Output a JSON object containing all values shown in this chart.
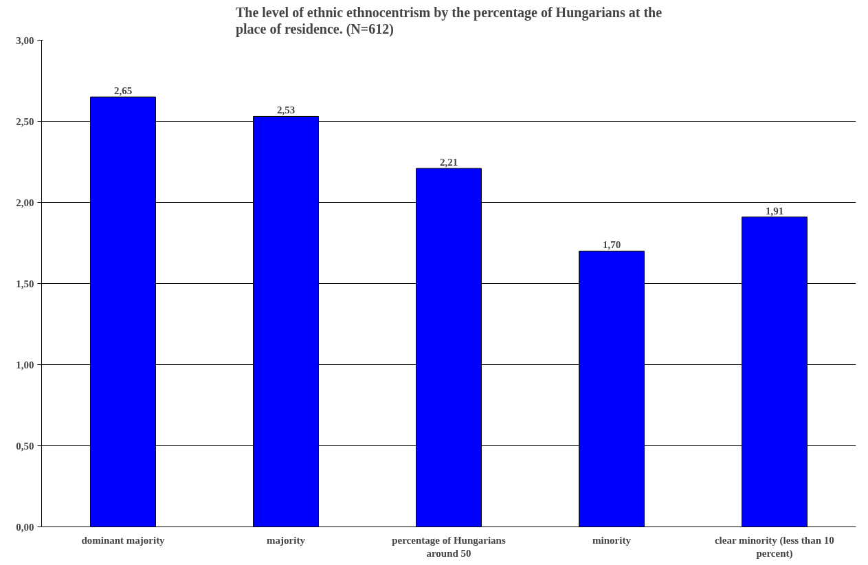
{
  "chart_data": {
    "type": "bar",
    "title": "The level of ethnic ethnocentrism by the percentage of Hungarians at the place of residence. (N=612)",
    "categories": [
      "dominant majority",
      "majority",
      "percentage of Hungarians around 50",
      "minority",
      "clear minority (less than 10 percent)"
    ],
    "values": [
      2.65,
      2.53,
      2.21,
      1.7,
      1.91
    ],
    "value_labels": [
      "2,65",
      "2,53",
      "2,21",
      "1,70",
      "1,91"
    ],
    "color": "#0000ff",
    "ylim": [
      0,
      3
    ],
    "yticks": [
      {
        "value": 0,
        "label": "0,00"
      },
      {
        "value": 0.5,
        "label": "0,50"
      },
      {
        "value": 1,
        "label": "1,00"
      },
      {
        "value": 1.5,
        "label": "1,50"
      },
      {
        "value": 2,
        "label": "2,00"
      },
      {
        "value": 2.5,
        "label": "2,50"
      },
      {
        "value": 3,
        "label": "3,00"
      }
    ],
    "grid": "y"
  }
}
